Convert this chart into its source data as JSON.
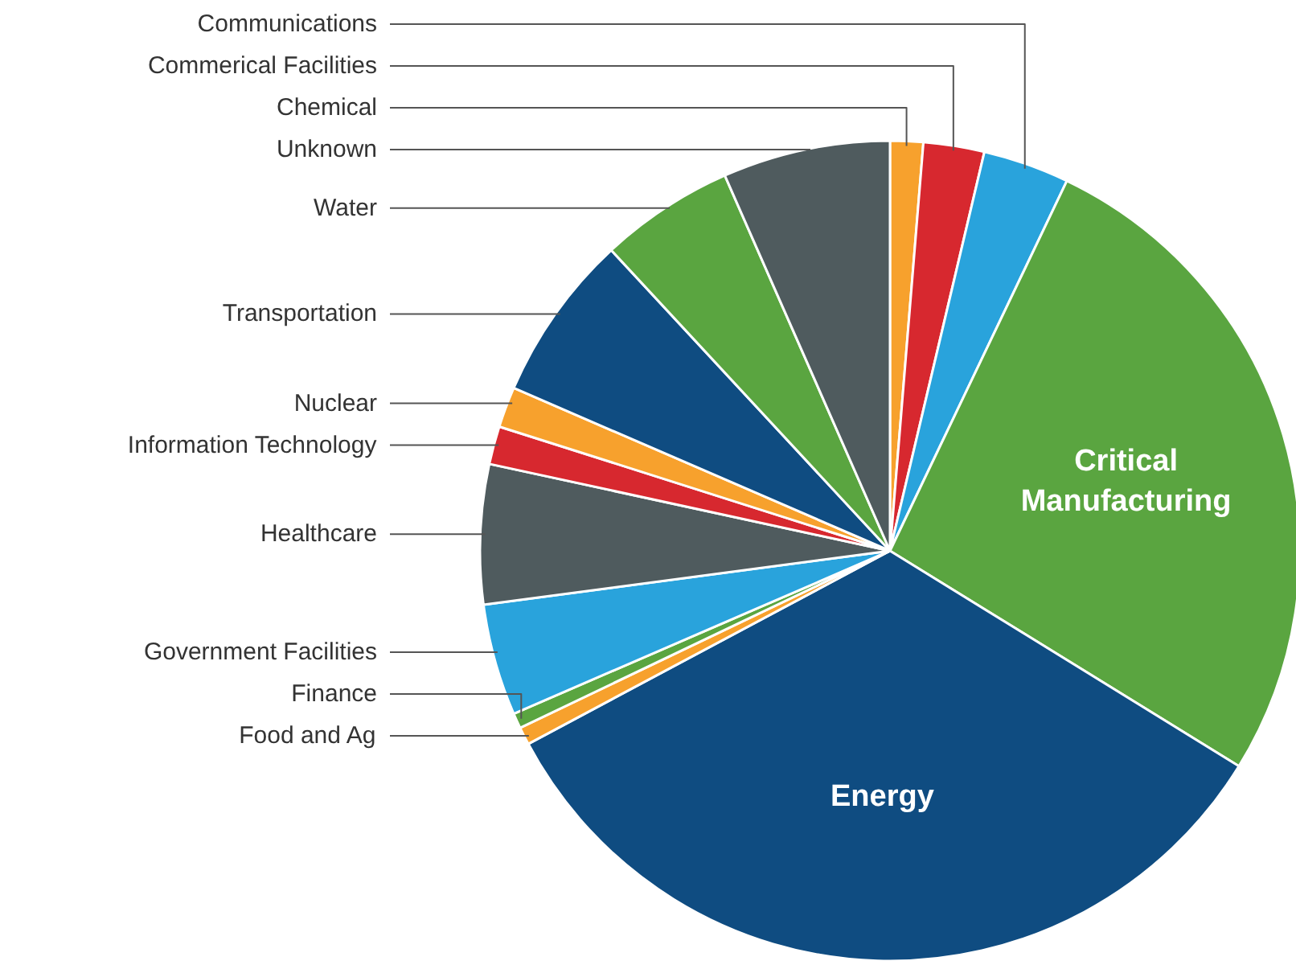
{
  "chart_data": {
    "type": "pie",
    "categories": [
      "Chemical",
      "Commerical Facilities",
      "Communications",
      "Critical Manufacturing",
      "Energy",
      "Food and Ag",
      "Finance",
      "Government Facilities",
      "Healthcare",
      "Information Technology",
      "Nuclear",
      "Transportation",
      "Water",
      "Unknown"
    ],
    "values": [
      1.3,
      2.4,
      3.4,
      26.7,
      33.4,
      0.7,
      0.6,
      4.4,
      5.5,
      1.5,
      1.6,
      6.6,
      5.3,
      6.6
    ],
    "colors": [
      "#f7a12d",
      "#d7282f",
      "#29a3dc",
      "#5aa540",
      "#0f4c81",
      "#f7a12d",
      "#5aa540",
      "#29a3dc",
      "#4f5b5e",
      "#d7282f",
      "#f7a12d",
      "#0f4c81",
      "#5aa540",
      "#4f5b5e"
    ]
  }
}
